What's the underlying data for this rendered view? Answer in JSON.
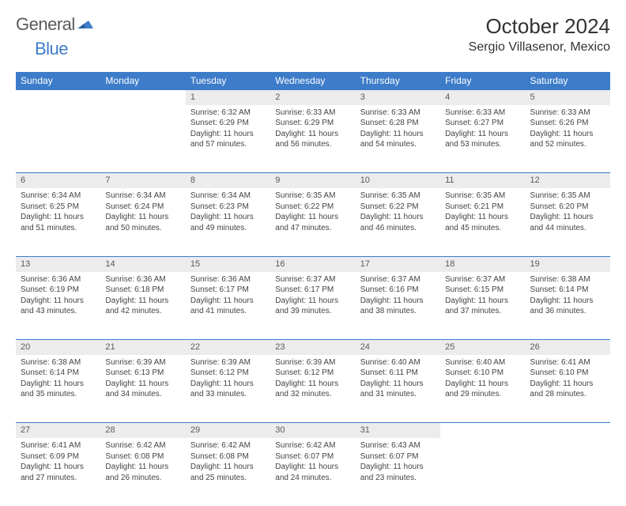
{
  "brand": {
    "general": "General",
    "blue": "Blue"
  },
  "colors": {
    "accent": "#3d7cc9",
    "daynum_bg": "#ececec",
    "text": "#333333"
  },
  "title": "October 2024",
  "location": "Sergio Villasenor, Mexico",
  "weekdays": [
    "Sunday",
    "Monday",
    "Tuesday",
    "Wednesday",
    "Thursday",
    "Friday",
    "Saturday"
  ],
  "weeks": [
    [
      null,
      null,
      {
        "n": "1",
        "sr": "Sunrise: 6:32 AM",
        "ss": "Sunset: 6:29 PM",
        "dl": "Daylight: 11 hours and 57 minutes."
      },
      {
        "n": "2",
        "sr": "Sunrise: 6:33 AM",
        "ss": "Sunset: 6:29 PM",
        "dl": "Daylight: 11 hours and 56 minutes."
      },
      {
        "n": "3",
        "sr": "Sunrise: 6:33 AM",
        "ss": "Sunset: 6:28 PM",
        "dl": "Daylight: 11 hours and 54 minutes."
      },
      {
        "n": "4",
        "sr": "Sunrise: 6:33 AM",
        "ss": "Sunset: 6:27 PM",
        "dl": "Daylight: 11 hours and 53 minutes."
      },
      {
        "n": "5",
        "sr": "Sunrise: 6:33 AM",
        "ss": "Sunset: 6:26 PM",
        "dl": "Daylight: 11 hours and 52 minutes."
      }
    ],
    [
      {
        "n": "6",
        "sr": "Sunrise: 6:34 AM",
        "ss": "Sunset: 6:25 PM",
        "dl": "Daylight: 11 hours and 51 minutes."
      },
      {
        "n": "7",
        "sr": "Sunrise: 6:34 AM",
        "ss": "Sunset: 6:24 PM",
        "dl": "Daylight: 11 hours and 50 minutes."
      },
      {
        "n": "8",
        "sr": "Sunrise: 6:34 AM",
        "ss": "Sunset: 6:23 PM",
        "dl": "Daylight: 11 hours and 49 minutes."
      },
      {
        "n": "9",
        "sr": "Sunrise: 6:35 AM",
        "ss": "Sunset: 6:22 PM",
        "dl": "Daylight: 11 hours and 47 minutes."
      },
      {
        "n": "10",
        "sr": "Sunrise: 6:35 AM",
        "ss": "Sunset: 6:22 PM",
        "dl": "Daylight: 11 hours and 46 minutes."
      },
      {
        "n": "11",
        "sr": "Sunrise: 6:35 AM",
        "ss": "Sunset: 6:21 PM",
        "dl": "Daylight: 11 hours and 45 minutes."
      },
      {
        "n": "12",
        "sr": "Sunrise: 6:35 AM",
        "ss": "Sunset: 6:20 PM",
        "dl": "Daylight: 11 hours and 44 minutes."
      }
    ],
    [
      {
        "n": "13",
        "sr": "Sunrise: 6:36 AM",
        "ss": "Sunset: 6:19 PM",
        "dl": "Daylight: 11 hours and 43 minutes."
      },
      {
        "n": "14",
        "sr": "Sunrise: 6:36 AM",
        "ss": "Sunset: 6:18 PM",
        "dl": "Daylight: 11 hours and 42 minutes."
      },
      {
        "n": "15",
        "sr": "Sunrise: 6:36 AM",
        "ss": "Sunset: 6:17 PM",
        "dl": "Daylight: 11 hours and 41 minutes."
      },
      {
        "n": "16",
        "sr": "Sunrise: 6:37 AM",
        "ss": "Sunset: 6:17 PM",
        "dl": "Daylight: 11 hours and 39 minutes."
      },
      {
        "n": "17",
        "sr": "Sunrise: 6:37 AM",
        "ss": "Sunset: 6:16 PM",
        "dl": "Daylight: 11 hours and 38 minutes."
      },
      {
        "n": "18",
        "sr": "Sunrise: 6:37 AM",
        "ss": "Sunset: 6:15 PM",
        "dl": "Daylight: 11 hours and 37 minutes."
      },
      {
        "n": "19",
        "sr": "Sunrise: 6:38 AM",
        "ss": "Sunset: 6:14 PM",
        "dl": "Daylight: 11 hours and 36 minutes."
      }
    ],
    [
      {
        "n": "20",
        "sr": "Sunrise: 6:38 AM",
        "ss": "Sunset: 6:14 PM",
        "dl": "Daylight: 11 hours and 35 minutes."
      },
      {
        "n": "21",
        "sr": "Sunrise: 6:39 AM",
        "ss": "Sunset: 6:13 PM",
        "dl": "Daylight: 11 hours and 34 minutes."
      },
      {
        "n": "22",
        "sr": "Sunrise: 6:39 AM",
        "ss": "Sunset: 6:12 PM",
        "dl": "Daylight: 11 hours and 33 minutes."
      },
      {
        "n": "23",
        "sr": "Sunrise: 6:39 AM",
        "ss": "Sunset: 6:12 PM",
        "dl": "Daylight: 11 hours and 32 minutes."
      },
      {
        "n": "24",
        "sr": "Sunrise: 6:40 AM",
        "ss": "Sunset: 6:11 PM",
        "dl": "Daylight: 11 hours and 31 minutes."
      },
      {
        "n": "25",
        "sr": "Sunrise: 6:40 AM",
        "ss": "Sunset: 6:10 PM",
        "dl": "Daylight: 11 hours and 29 minutes."
      },
      {
        "n": "26",
        "sr": "Sunrise: 6:41 AM",
        "ss": "Sunset: 6:10 PM",
        "dl": "Daylight: 11 hours and 28 minutes."
      }
    ],
    [
      {
        "n": "27",
        "sr": "Sunrise: 6:41 AM",
        "ss": "Sunset: 6:09 PM",
        "dl": "Daylight: 11 hours and 27 minutes."
      },
      {
        "n": "28",
        "sr": "Sunrise: 6:42 AM",
        "ss": "Sunset: 6:08 PM",
        "dl": "Daylight: 11 hours and 26 minutes."
      },
      {
        "n": "29",
        "sr": "Sunrise: 6:42 AM",
        "ss": "Sunset: 6:08 PM",
        "dl": "Daylight: 11 hours and 25 minutes."
      },
      {
        "n": "30",
        "sr": "Sunrise: 6:42 AM",
        "ss": "Sunset: 6:07 PM",
        "dl": "Daylight: 11 hours and 24 minutes."
      },
      {
        "n": "31",
        "sr": "Sunrise: 6:43 AM",
        "ss": "Sunset: 6:07 PM",
        "dl": "Daylight: 11 hours and 23 minutes."
      },
      null,
      null
    ]
  ]
}
